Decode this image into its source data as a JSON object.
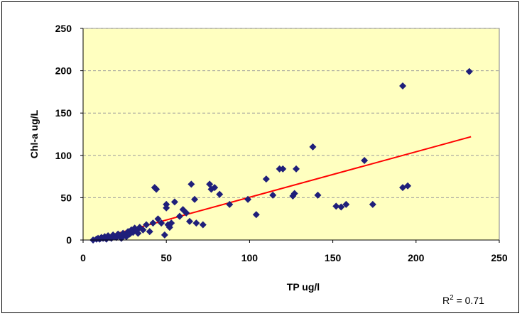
{
  "chart_data": {
    "type": "scatter",
    "title": "",
    "xlabel": "TP ug/l",
    "ylabel": "Chl-a ug/L",
    "xlim": [
      0,
      250
    ],
    "ylim": [
      0,
      250
    ],
    "xticks": [
      "0",
      "50",
      "100",
      "150",
      "200",
      "250"
    ],
    "yticks": [
      "0",
      "50",
      "100",
      "150",
      "200",
      "250"
    ],
    "grid": "horizontal dashed",
    "plot_background": "#ffffc0",
    "marker_color": "#1f1f7a",
    "trendline_color": "#ff0000",
    "r2_label": "R",
    "r2_sup": "2",
    "r2_value": " = 0.71",
    "trendline": {
      "x": [
        6,
        233
      ],
      "y": [
        0,
        122
      ]
    },
    "points": [
      [
        6,
        0
      ],
      [
        8,
        1
      ],
      [
        9,
        2
      ],
      [
        10,
        1
      ],
      [
        11,
        3
      ],
      [
        12,
        2
      ],
      [
        13,
        4
      ],
      [
        14,
        1
      ],
      [
        15,
        5
      ],
      [
        16,
        3
      ],
      [
        17,
        2
      ],
      [
        18,
        6
      ],
      [
        19,
        4
      ],
      [
        20,
        3
      ],
      [
        21,
        7
      ],
      [
        22,
        5
      ],
      [
        23,
        2
      ],
      [
        24,
        8
      ],
      [
        25,
        6
      ],
      [
        26,
        4
      ],
      [
        27,
        10
      ],
      [
        28,
        7
      ],
      [
        29,
        12
      ],
      [
        30,
        9
      ],
      [
        31,
        14
      ],
      [
        32,
        11
      ],
      [
        33,
        8
      ],
      [
        34,
        15
      ],
      [
        36,
        12
      ],
      [
        38,
        18
      ],
      [
        40,
        10
      ],
      [
        42,
        20
      ],
      [
        43,
        62
      ],
      [
        44,
        60
      ],
      [
        45,
        25
      ],
      [
        47,
        20
      ],
      [
        49,
        6
      ],
      [
        50,
        38
      ],
      [
        50,
        42
      ],
      [
        51,
        18
      ],
      [
        52,
        15
      ],
      [
        53,
        20
      ],
      [
        55,
        45
      ],
      [
        58,
        28
      ],
      [
        60,
        36
      ],
      [
        62,
        32
      ],
      [
        64,
        22
      ],
      [
        65,
        66
      ],
      [
        67,
        48
      ],
      [
        68,
        20
      ],
      [
        72,
        18
      ],
      [
        76,
        66
      ],
      [
        77,
        60
      ],
      [
        79,
        62
      ],
      [
        82,
        54
      ],
      [
        88,
        42
      ],
      [
        99,
        48
      ],
      [
        104,
        30
      ],
      [
        110,
        72
      ],
      [
        114,
        53
      ],
      [
        118,
        84
      ],
      [
        120,
        84
      ],
      [
        126,
        52
      ],
      [
        127,
        55
      ],
      [
        128,
        84
      ],
      [
        138,
        110
      ],
      [
        141,
        53
      ],
      [
        152,
        40
      ],
      [
        155,
        39
      ],
      [
        158,
        42
      ],
      [
        169,
        94
      ],
      [
        174,
        42
      ],
      [
        192,
        62
      ],
      [
        192,
        182
      ],
      [
        195,
        64
      ],
      [
        232,
        199
      ]
    ]
  }
}
